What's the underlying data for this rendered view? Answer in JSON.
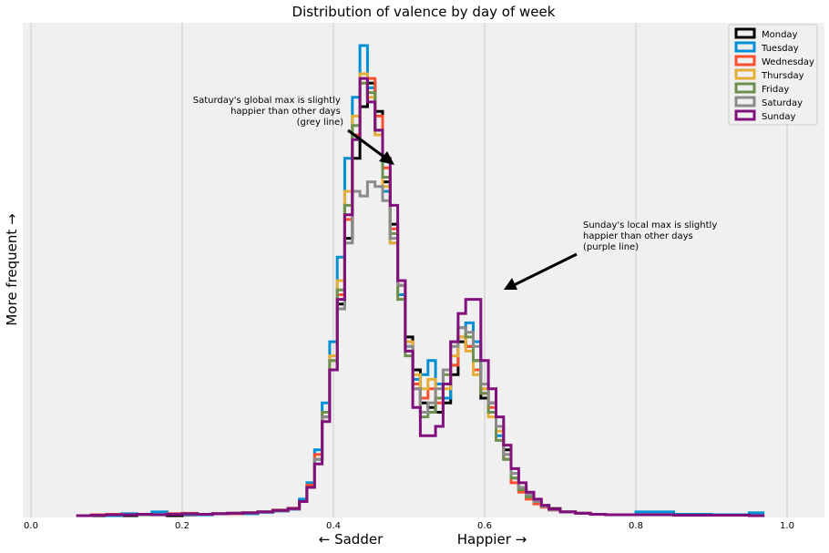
{
  "chart_data": {
    "type": "step-histogram",
    "title": "Distribution of valence by day of week",
    "xlabel_left": "← Sadder",
    "xlabel_right": "Happier →",
    "ylabel": "More frequent →",
    "xlim": [
      -0.01,
      1.05
    ],
    "x_ticks": [
      "0.0",
      "0.2",
      "0.4",
      "0.6",
      "0.8",
      "1.0"
    ],
    "grid": "vertical",
    "legend_position": "top-right",
    "background": "#f0f0f0",
    "annotations": [
      {
        "lines": [
          "Saturday's global max is slightly",
          "happier than other days",
          "(grey line)"
        ],
        "align": "right",
        "arrow_target": [
          0.48,
          0.74
        ]
      },
      {
        "lines": [
          "Sunday's local max is slightly",
          "happier than other days",
          "(purple line)"
        ],
        "align": "left",
        "arrow_target": [
          0.625,
          0.47
        ]
      }
    ],
    "series": [
      {
        "name": "Monday",
        "color": "#000000",
        "x": [
          0.06,
          0.08,
          0.1,
          0.12,
          0.14,
          0.16,
          0.18,
          0.2,
          0.22,
          0.24,
          0.26,
          0.28,
          0.3,
          0.32,
          0.34,
          0.355,
          0.365,
          0.375,
          0.385,
          0.395,
          0.405,
          0.415,
          0.425,
          0.435,
          0.445,
          0.455,
          0.465,
          0.475,
          0.485,
          0.495,
          0.505,
          0.515,
          0.525,
          0.535,
          0.545,
          0.555,
          0.565,
          0.575,
          0.585,
          0.595,
          0.605,
          0.615,
          0.625,
          0.635,
          0.645,
          0.655,
          0.665,
          0.675,
          0.685,
          0.7,
          0.72,
          0.74,
          0.76,
          0.8,
          0.85,
          0.9,
          0.95
        ],
        "y": [
          0,
          0,
          0.002,
          0,
          0.003,
          0.002,
          0,
          0.002,
          0.003,
          0.004,
          0.005,
          0.006,
          0.008,
          0.01,
          0.014,
          0.03,
          0.06,
          0.12,
          0.21,
          0.31,
          0.45,
          0.59,
          0.76,
          0.87,
          0.92,
          0.86,
          0.71,
          0.62,
          0.49,
          0.38,
          0.31,
          0.24,
          0.23,
          0.22,
          0.24,
          0.3,
          0.37,
          0.36,
          0.33,
          0.25,
          0.24,
          0.19,
          0.14,
          0.08,
          0.055,
          0.04,
          0.03,
          0.02,
          0.015,
          0.008,
          0.005,
          0.003,
          0.002,
          0.002,
          0.001,
          0.001,
          0
        ]
      },
      {
        "name": "Tuesday",
        "color": "#008fd5",
        "x": [
          0.06,
          0.08,
          0.1,
          0.12,
          0.14,
          0.16,
          0.18,
          0.2,
          0.22,
          0.24,
          0.26,
          0.28,
          0.3,
          0.32,
          0.34,
          0.355,
          0.365,
          0.375,
          0.385,
          0.395,
          0.405,
          0.415,
          0.425,
          0.435,
          0.445,
          0.455,
          0.465,
          0.475,
          0.485,
          0.495,
          0.505,
          0.515,
          0.525,
          0.535,
          0.545,
          0.555,
          0.565,
          0.575,
          0.585,
          0.595,
          0.605,
          0.615,
          0.625,
          0.635,
          0.645,
          0.655,
          0.665,
          0.675,
          0.685,
          0.7,
          0.72,
          0.74,
          0.76,
          0.8,
          0.85,
          0.9,
          0.95
        ],
        "y": [
          0,
          0.002,
          0,
          0.004,
          0.002,
          0.008,
          0.004,
          0.003,
          0.002,
          0.004,
          0.005,
          0.004,
          0.007,
          0.01,
          0.014,
          0.035,
          0.07,
          0.14,
          0.24,
          0.37,
          0.55,
          0.76,
          0.89,
          1.0,
          0.91,
          0.82,
          0.69,
          0.58,
          0.47,
          0.36,
          0.29,
          0.3,
          0.33,
          0.28,
          0.25,
          0.32,
          0.38,
          0.41,
          0.37,
          0.28,
          0.22,
          0.17,
          0.12,
          0.08,
          0.06,
          0.04,
          0.03,
          0.02,
          0.012,
          0.008,
          0.005,
          0.003,
          0.002,
          0.008,
          0.003,
          0.002,
          0.006
        ]
      },
      {
        "name": "Wednesday",
        "color": "#fc4f30",
        "x": [
          0.06,
          0.08,
          0.1,
          0.12,
          0.14,
          0.16,
          0.18,
          0.2,
          0.22,
          0.24,
          0.26,
          0.28,
          0.3,
          0.32,
          0.34,
          0.355,
          0.365,
          0.375,
          0.385,
          0.395,
          0.405,
          0.415,
          0.425,
          0.435,
          0.445,
          0.455,
          0.465,
          0.475,
          0.485,
          0.495,
          0.505,
          0.515,
          0.525,
          0.535,
          0.545,
          0.555,
          0.565,
          0.575,
          0.585,
          0.595,
          0.605,
          0.615,
          0.625,
          0.635,
          0.645,
          0.655,
          0.665,
          0.675,
          0.685,
          0.7,
          0.72,
          0.74,
          0.76,
          0.8,
          0.85,
          0.9,
          0.95
        ],
        "y": [
          0,
          0.002,
          0.003,
          0.002,
          0.003,
          0.002,
          0.004,
          0.005,
          0.003,
          0.004,
          0.004,
          0.006,
          0.008,
          0.012,
          0.016,
          0.03,
          0.065,
          0.13,
          0.22,
          0.33,
          0.47,
          0.63,
          0.81,
          0.92,
          0.93,
          0.85,
          0.74,
          0.61,
          0.49,
          0.37,
          0.28,
          0.25,
          0.27,
          0.24,
          0.28,
          0.32,
          0.38,
          0.36,
          0.31,
          0.26,
          0.23,
          0.19,
          0.12,
          0.07,
          0.05,
          0.035,
          0.025,
          0.018,
          0.012,
          0.008,
          0.005,
          0.003,
          0.002,
          0.002,
          0.001,
          0.001,
          0
        ]
      },
      {
        "name": "Thursday",
        "color": "#e5ae38",
        "x": [
          0.06,
          0.08,
          0.1,
          0.12,
          0.14,
          0.16,
          0.18,
          0.2,
          0.22,
          0.24,
          0.26,
          0.28,
          0.3,
          0.32,
          0.34,
          0.355,
          0.365,
          0.375,
          0.385,
          0.395,
          0.405,
          0.415,
          0.425,
          0.435,
          0.445,
          0.455,
          0.465,
          0.475,
          0.485,
          0.495,
          0.505,
          0.515,
          0.525,
          0.535,
          0.545,
          0.555,
          0.565,
          0.575,
          0.585,
          0.595,
          0.605,
          0.615,
          0.625,
          0.635,
          0.645,
          0.655,
          0.665,
          0.675,
          0.685,
          0.7,
          0.72,
          0.74,
          0.76,
          0.8,
          0.85,
          0.9,
          0.95
        ],
        "y": [
          0,
          0.001,
          0.002,
          0.002,
          0.003,
          0.002,
          0.003,
          0.004,
          0.003,
          0.004,
          0.005,
          0.006,
          0.008,
          0.011,
          0.015,
          0.03,
          0.06,
          0.12,
          0.22,
          0.34,
          0.5,
          0.69,
          0.85,
          0.94,
          0.89,
          0.81,
          0.7,
          0.58,
          0.46,
          0.37,
          0.3,
          0.27,
          0.29,
          0.25,
          0.27,
          0.34,
          0.38,
          0.35,
          0.3,
          0.27,
          0.21,
          0.18,
          0.13,
          0.08,
          0.055,
          0.04,
          0.03,
          0.02,
          0.013,
          0.008,
          0.005,
          0.003,
          0.002,
          0.002,
          0.001,
          0.001,
          0
        ]
      },
      {
        "name": "Friday",
        "color": "#6d904f",
        "x": [
          0.06,
          0.08,
          0.1,
          0.12,
          0.14,
          0.16,
          0.18,
          0.2,
          0.22,
          0.24,
          0.26,
          0.28,
          0.3,
          0.32,
          0.34,
          0.355,
          0.365,
          0.375,
          0.385,
          0.395,
          0.405,
          0.415,
          0.425,
          0.435,
          0.445,
          0.455,
          0.465,
          0.475,
          0.485,
          0.495,
          0.505,
          0.515,
          0.525,
          0.535,
          0.545,
          0.555,
          0.565,
          0.575,
          0.585,
          0.595,
          0.605,
          0.615,
          0.625,
          0.635,
          0.645,
          0.655,
          0.665,
          0.675,
          0.685,
          0.7,
          0.72,
          0.74,
          0.76,
          0.8,
          0.85,
          0.9,
          0.95
        ],
        "y": [
          0,
          0.001,
          0.002,
          0.002,
          0.002,
          0.002,
          0.003,
          0.004,
          0.003,
          0.004,
          0.005,
          0.006,
          0.008,
          0.011,
          0.015,
          0.03,
          0.06,
          0.12,
          0.22,
          0.33,
          0.48,
          0.66,
          0.83,
          0.92,
          0.9,
          0.82,
          0.72,
          0.6,
          0.46,
          0.34,
          0.27,
          0.21,
          0.22,
          0.25,
          0.3,
          0.37,
          0.4,
          0.38,
          0.33,
          0.26,
          0.22,
          0.16,
          0.12,
          0.08,
          0.055,
          0.04,
          0.03,
          0.02,
          0.013,
          0.008,
          0.005,
          0.003,
          0.002,
          0.002,
          0.001,
          0.001,
          0
        ]
      },
      {
        "name": "Saturday",
        "color": "#8b8b8b",
        "x": [
          0.06,
          0.08,
          0.1,
          0.12,
          0.14,
          0.16,
          0.18,
          0.2,
          0.22,
          0.24,
          0.26,
          0.28,
          0.3,
          0.32,
          0.34,
          0.355,
          0.365,
          0.375,
          0.385,
          0.395,
          0.405,
          0.415,
          0.425,
          0.435,
          0.445,
          0.455,
          0.465,
          0.475,
          0.485,
          0.495,
          0.505,
          0.515,
          0.525,
          0.535,
          0.545,
          0.555,
          0.565,
          0.575,
          0.585,
          0.595,
          0.605,
          0.615,
          0.625,
          0.635,
          0.645,
          0.655,
          0.665,
          0.675,
          0.685,
          0.7,
          0.72,
          0.74,
          0.76,
          0.8,
          0.85,
          0.9,
          0.95
        ],
        "y": [
          0,
          0.001,
          0.002,
          0.002,
          0.003,
          0.002,
          0.003,
          0.004,
          0.003,
          0.004,
          0.005,
          0.006,
          0.008,
          0.011,
          0.015,
          0.03,
          0.06,
          0.12,
          0.21,
          0.31,
          0.44,
          0.58,
          0.69,
          0.68,
          0.71,
          0.7,
          0.67,
          0.59,
          0.49,
          0.36,
          0.27,
          0.22,
          0.24,
          0.27,
          0.31,
          0.36,
          0.4,
          0.39,
          0.36,
          0.28,
          0.24,
          0.19,
          0.13,
          0.09,
          0.06,
          0.045,
          0.03,
          0.02,
          0.013,
          0.008,
          0.005,
          0.003,
          0.002,
          0.002,
          0.001,
          0.001,
          0
        ]
      },
      {
        "name": "Sunday",
        "color": "#810f7c",
        "x": [
          0.06,
          0.08,
          0.1,
          0.12,
          0.14,
          0.16,
          0.18,
          0.2,
          0.22,
          0.24,
          0.26,
          0.28,
          0.3,
          0.32,
          0.34,
          0.355,
          0.365,
          0.375,
          0.385,
          0.395,
          0.405,
          0.415,
          0.425,
          0.435,
          0.445,
          0.455,
          0.465,
          0.475,
          0.485,
          0.495,
          0.505,
          0.515,
          0.525,
          0.535,
          0.545,
          0.555,
          0.565,
          0.575,
          0.585,
          0.595,
          0.605,
          0.615,
          0.625,
          0.635,
          0.645,
          0.655,
          0.665,
          0.675,
          0.685,
          0.7,
          0.72,
          0.74,
          0.76,
          0.8,
          0.85,
          0.9,
          0.95
        ],
        "y": [
          0,
          0.001,
          0.002,
          0.002,
          0.003,
          0.002,
          0.003,
          0.004,
          0.003,
          0.004,
          0.005,
          0.006,
          0.008,
          0.011,
          0.015,
          0.03,
          0.06,
          0.11,
          0.2,
          0.31,
          0.46,
          0.64,
          0.8,
          0.93,
          0.88,
          0.82,
          0.76,
          0.66,
          0.5,
          0.35,
          0.23,
          0.17,
          0.17,
          0.19,
          0.28,
          0.37,
          0.43,
          0.46,
          0.46,
          0.33,
          0.27,
          0.21,
          0.15,
          0.1,
          0.07,
          0.05,
          0.035,
          0.022,
          0.014,
          0.008,
          0.005,
          0.003,
          0.002,
          0.002,
          0.001,
          0.001,
          0
        ]
      }
    ]
  }
}
